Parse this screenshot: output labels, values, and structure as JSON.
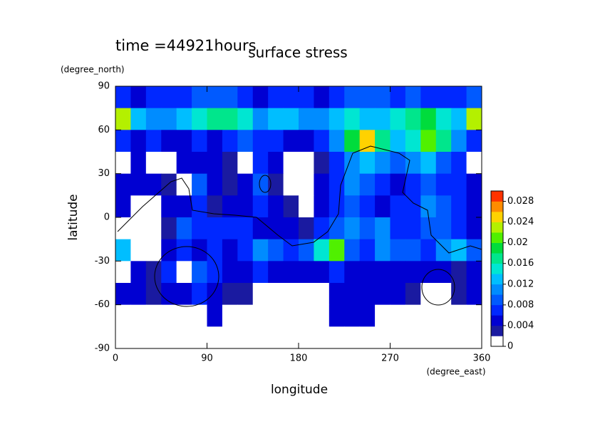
{
  "chart_data": {
    "type": "heatmap",
    "title": "surface stress",
    "subtitle": "time =44921hours",
    "x_label": "longitude",
    "x_units": "(degree_east)",
    "y_label": "latitude",
    "y_units": "(degree_north)",
    "xlim": [
      0,
      360
    ],
    "xticks": [
      0,
      90,
      180,
      270,
      360
    ],
    "ylim": [
      -90,
      90
    ],
    "yticks": [
      -90,
      -60,
      -30,
      0,
      30,
      60,
      90
    ],
    "zlim": [
      0,
      0.03
    ],
    "zticks": [
      0,
      0.004,
      0.008,
      0.012,
      0.016,
      0.02,
      0.024,
      0.028
    ],
    "colors": [
      "#ffffff",
      "#1a1aa0",
      "#0000d2",
      "#0028ff",
      "#005aff",
      "#008cff",
      "#00beff",
      "#00e6d2",
      "#00e68c",
      "#00dc3c",
      "#50f000",
      "#b4f000",
      "#ffd200",
      "#ff8c00",
      "#ff3200"
    ],
    "x": [
      7.5,
      22.5,
      37.5,
      52.5,
      67.5,
      82.5,
      97.5,
      112.5,
      127.5,
      142.5,
      157.5,
      172.5,
      187.5,
      202.5,
      217.5,
      232.5,
      247.5,
      262.5,
      277.5,
      292.5,
      307.5,
      322.5,
      337.5,
      352.5
    ],
    "y": [
      82.5,
      67.5,
      52.5,
      37.5,
      22.5,
      7.5,
      -7.5,
      -22.5,
      -37.5,
      -52.5,
      -67.5,
      -82.5
    ],
    "z": [
      [
        0.006,
        0.005,
        0.006,
        0.007,
        0.006,
        0.008,
        0.009,
        0.008,
        0.006,
        0.005,
        0.007,
        0.006,
        0.006,
        0.005,
        0.007,
        0.008,
        0.009,
        0.008,
        0.007,
        0.008,
        0.007,
        0.006,
        0.007,
        0.008
      ],
      [
        0.022,
        0.012,
        0.01,
        0.011,
        0.012,
        0.015,
        0.016,
        0.017,
        0.014,
        0.011,
        0.012,
        0.013,
        0.011,
        0.01,
        0.012,
        0.014,
        0.013,
        0.012,
        0.014,
        0.016,
        0.018,
        0.015,
        0.012,
        0.022
      ],
      [
        0.006,
        0.005,
        0.006,
        0.005,
        0.004,
        0.006,
        0.005,
        0.006,
        0.008,
        0.007,
        0.006,
        0.005,
        0.005,
        0.006,
        0.01,
        0.018,
        0.024,
        0.016,
        0.012,
        0.014,
        0.02,
        0.016,
        0.01,
        0.006
      ],
      [
        0.001,
        0.004,
        0.001,
        0.001,
        0.004,
        0.005,
        0.004,
        0.003,
        0.001,
        0.006,
        0.004,
        0.001,
        0.001,
        0.003,
        0.006,
        0.01,
        0.012,
        0.01,
        0.008,
        0.01,
        0.012,
        0.008,
        0.006,
        0.001
      ],
      [
        0.004,
        0.005,
        0.004,
        0.003,
        0.001,
        0.008,
        0.004,
        0.003,
        0.004,
        0.008,
        0.003,
        0.001,
        0.001,
        0.004,
        0.006,
        0.01,
        0.008,
        0.006,
        0.005,
        0.006,
        0.008,
        0.006,
        0.007,
        0.004
      ],
      [
        0.004,
        0.001,
        0.001,
        0.004,
        0.005,
        0.006,
        0.003,
        0.004,
        0.005,
        0.006,
        0.004,
        0.003,
        0.001,
        0.004,
        0.006,
        0.008,
        0.006,
        0.005,
        0.006,
        0.007,
        0.01,
        0.008,
        0.006,
        0.005
      ],
      [
        0.001,
        0.001,
        0.001,
        0.003,
        0.008,
        0.006,
        0.007,
        0.006,
        0.006,
        0.005,
        0.004,
        0.004,
        0.003,
        0.006,
        0.008,
        0.01,
        0.008,
        0.01,
        0.007,
        0.006,
        0.008,
        0.009,
        0.007,
        0.004
      ],
      [
        0.012,
        0.001,
        0.001,
        0.004,
        0.006,
        0.005,
        0.006,
        0.005,
        0.006,
        0.011,
        0.009,
        0.007,
        0.008,
        0.014,
        0.02,
        0.008,
        0.006,
        0.01,
        0.008,
        0.009,
        0.006,
        0.01,
        0.012,
        0.008
      ],
      [
        0.001,
        0.004,
        0.003,
        0.006,
        0.001,
        0.008,
        0.006,
        0.005,
        0.004,
        0.006,
        0.005,
        0.004,
        0.004,
        0.005,
        0.006,
        0.004,
        0.004,
        0.005,
        0.004,
        0.004,
        0.005,
        0.004,
        0.003,
        0.004
      ],
      [
        0.004,
        0.004,
        0.003,
        0.005,
        0.004,
        0.006,
        0.004,
        0.003,
        0.003,
        0.001,
        0.001,
        0.001,
        0.001,
        0.001,
        0.004,
        0.005,
        0.004,
        0.005,
        0.004,
        0.003,
        0.001,
        0.001,
        0.003,
        0.004
      ],
      [
        0.001,
        0.001,
        0.001,
        0.001,
        0.001,
        0.001,
        0.004,
        0.001,
        0.001,
        0.001,
        0.001,
        0.001,
        0.001,
        0.001,
        0.004,
        0.004,
        0.004,
        0.001,
        0.001,
        0.001,
        0.001,
        0.001,
        0.001,
        0.001
      ],
      [
        0,
        0,
        0,
        0,
        0,
        0,
        0,
        0,
        0,
        0,
        0,
        0,
        0,
        0,
        0,
        0,
        0,
        0,
        0,
        0,
        0,
        0,
        0,
        0
      ]
    ]
  }
}
